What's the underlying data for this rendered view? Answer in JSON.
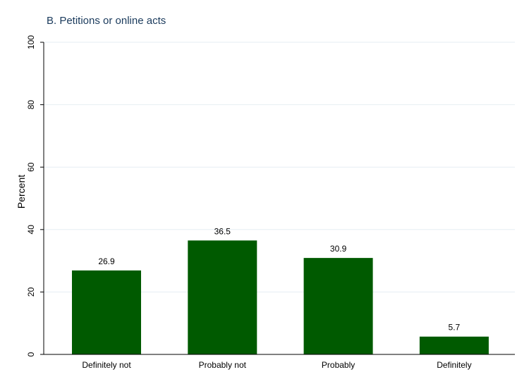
{
  "chart_data": {
    "type": "bar",
    "title": "B. Petitions or online acts",
    "xlabel": "",
    "ylabel": "Percent",
    "categories": [
      "Definitely not",
      "Probably not",
      "Probably",
      "Definitely"
    ],
    "values": [
      26.9,
      36.5,
      30.9,
      5.7
    ],
    "value_labels": [
      "26.9",
      "36.5",
      "30.9",
      "5.7"
    ],
    "ylim": [
      0,
      100
    ],
    "yticks": [
      0,
      20,
      40,
      60,
      80,
      100
    ],
    "ytick_labels": [
      "0",
      "20",
      "40",
      "60",
      "80",
      "100"
    ],
    "grid": true,
    "bar_color": "#005a00",
    "grid_color": "#e6eef3"
  }
}
